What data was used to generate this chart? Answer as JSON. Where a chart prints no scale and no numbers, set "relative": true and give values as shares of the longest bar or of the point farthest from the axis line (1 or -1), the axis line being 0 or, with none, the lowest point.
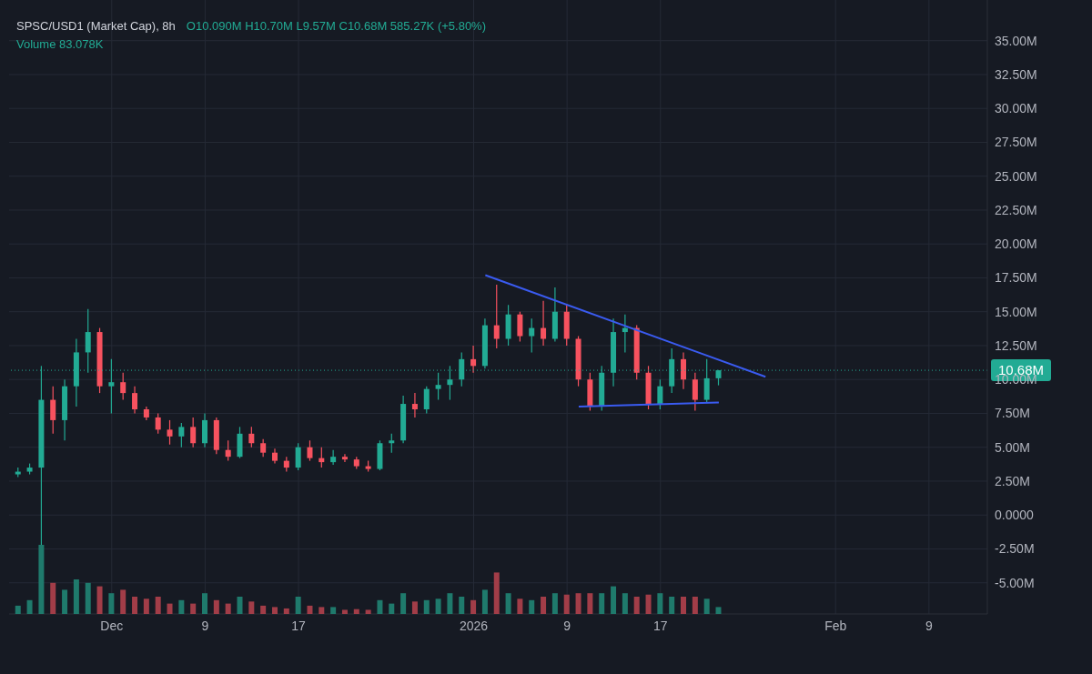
{
  "chart_data": [
    {
      "type": "candlestick",
      "title": "SPSC/USD1 (Market Cap), 8h",
      "annotations": [
        "O10.090M H10.70M L9.57M C10.68M 585.27K (+5.80%)",
        "Volume 83.078K"
      ],
      "x": [
        "2025-11-23",
        "2025-11-24",
        "2025-11-25",
        "2025-11-26",
        "2025-11-27",
        "2025-11-28",
        "2025-11-29",
        "2025-11-30",
        "2025-12-01",
        "2025-12-02",
        "2025-12-03",
        "2025-12-04",
        "2025-12-05",
        "2025-12-06",
        "2025-12-07",
        "2025-12-08",
        "2025-12-09",
        "2025-12-10",
        "2025-12-11",
        "2025-12-12",
        "2025-12-13",
        "2025-12-14",
        "2025-12-15",
        "2025-12-16",
        "2025-12-17",
        "2025-12-18",
        "2025-12-19",
        "2025-12-20",
        "2025-12-21",
        "2025-12-22",
        "2025-12-23",
        "2025-12-24",
        "2025-12-25",
        "2025-12-26",
        "2025-12-27",
        "2025-12-28",
        "2025-12-29",
        "2025-12-30",
        "2025-12-31",
        "2026-01-01",
        "2026-01-02",
        "2026-01-03",
        "2026-01-04",
        "2026-01-05",
        "2026-01-06",
        "2026-01-07",
        "2026-01-08",
        "2026-01-09",
        "2026-01-10",
        "2026-01-11",
        "2026-01-12",
        "2026-01-13",
        "2026-01-14",
        "2026-01-15",
        "2026-01-16",
        "2026-01-17",
        "2026-01-18",
        "2026-01-19",
        "2026-01-20",
        "2026-01-21",
        "2026-01-22"
      ],
      "ohlc": [
        [
          3.0,
          3.5,
          2.8,
          3.2
        ],
        [
          3.2,
          3.8,
          3.0,
          3.5
        ],
        [
          3.5,
          11.0,
          -2.5,
          8.5
        ],
        [
          8.5,
          9.5,
          6.0,
          7.0
        ],
        [
          7.0,
          10.0,
          5.5,
          9.5
        ],
        [
          9.5,
          13.0,
          8.0,
          12.0
        ],
        [
          12.0,
          15.2,
          10.5,
          13.5
        ],
        [
          13.5,
          13.8,
          9.0,
          9.5
        ],
        [
          9.5,
          11.5,
          7.5,
          9.8
        ],
        [
          9.8,
          10.5,
          8.5,
          9.0
        ],
        [
          9.0,
          9.5,
          7.5,
          7.8
        ],
        [
          7.8,
          8.0,
          7.0,
          7.2
        ],
        [
          7.2,
          7.5,
          6.0,
          6.3
        ],
        [
          6.3,
          7.0,
          5.2,
          5.8
        ],
        [
          5.8,
          6.8,
          5.0,
          6.5
        ],
        [
          6.5,
          7.2,
          5.0,
          5.3
        ],
        [
          5.3,
          7.5,
          5.0,
          7.0
        ],
        [
          7.0,
          7.2,
          4.5,
          4.8
        ],
        [
          4.8,
          5.5,
          4.0,
          4.3
        ],
        [
          4.3,
          6.5,
          4.2,
          6.0
        ],
        [
          6.0,
          6.5,
          5.0,
          5.3
        ],
        [
          5.3,
          5.6,
          4.3,
          4.6
        ],
        [
          4.6,
          4.9,
          3.8,
          4.0
        ],
        [
          4.0,
          4.3,
          3.2,
          3.5
        ],
        [
          3.5,
          5.3,
          3.3,
          5.0
        ],
        [
          5.0,
          5.5,
          4.0,
          4.2
        ],
        [
          4.2,
          5.0,
          3.5,
          3.9
        ],
        [
          3.9,
          4.8,
          3.7,
          4.3
        ],
        [
          4.3,
          4.5,
          3.9,
          4.1
        ],
        [
          4.1,
          4.3,
          3.4,
          3.6
        ],
        [
          3.6,
          4.0,
          3.2,
          3.4
        ],
        [
          3.4,
          5.5,
          3.3,
          5.3
        ],
        [
          5.3,
          6.0,
          4.6,
          5.5
        ],
        [
          5.5,
          8.8,
          5.3,
          8.2
        ],
        [
          8.2,
          9.0,
          7.2,
          7.8
        ],
        [
          7.8,
          9.5,
          7.5,
          9.3
        ],
        [
          9.3,
          10.5,
          8.5,
          9.6
        ],
        [
          9.6,
          11.0,
          8.5,
          10.0
        ],
        [
          10.0,
          12.0,
          9.5,
          11.5
        ],
        [
          11.5,
          12.5,
          10.5,
          11.0
        ],
        [
          11.0,
          14.5,
          10.8,
          14.0
        ],
        [
          14.0,
          17.0,
          12.3,
          13.0
        ],
        [
          13.0,
          15.5,
          12.5,
          14.8
        ],
        [
          14.8,
          15.0,
          12.8,
          13.2
        ],
        [
          13.2,
          14.5,
          12.0,
          13.8
        ],
        [
          13.8,
          15.8,
          12.5,
          13.0
        ],
        [
          13.0,
          16.8,
          12.8,
          15.0
        ],
        [
          15.0,
          15.5,
          12.5,
          13.0
        ],
        [
          13.0,
          13.2,
          9.5,
          10.0
        ],
        [
          10.0,
          10.5,
          7.7,
          8.0
        ],
        [
          8.0,
          11.0,
          7.7,
          10.5
        ],
        [
          10.5,
          14.5,
          9.5,
          13.5
        ],
        [
          13.5,
          14.8,
          12.0,
          13.8
        ],
        [
          13.8,
          14.0,
          10.0,
          10.5
        ],
        [
          10.5,
          11.0,
          7.8,
          8.2
        ],
        [
          8.2,
          10.0,
          7.8,
          9.5
        ],
        [
          9.5,
          12.3,
          9.0,
          11.5
        ],
        [
          11.5,
          12.0,
          9.3,
          10.0
        ],
        [
          10.0,
          10.5,
          7.7,
          8.5
        ],
        [
          8.5,
          11.5,
          8.3,
          10.09
        ],
        [
          10.09,
          10.7,
          9.57,
          10.68
        ]
      ],
      "colors": [
        "#22ab94",
        "#22ab94",
        "#22ab94",
        "#f7525f",
        "#22ab94",
        "#22ab94",
        "#22ab94",
        "#f7525f",
        "#22ab94",
        "#f7525f",
        "#f7525f",
        "#f7525f",
        "#f7525f",
        "#f7525f",
        "#22ab94",
        "#f7525f",
        "#22ab94",
        "#f7525f",
        "#f7525f",
        "#22ab94",
        "#f7525f",
        "#f7525f",
        "#f7525f",
        "#f7525f",
        "#22ab94",
        "#f7525f",
        "#f7525f",
        "#22ab94",
        "#f7525f",
        "#f7525f",
        "#f7525f",
        "#22ab94",
        "#22ab94",
        "#22ab94",
        "#f7525f",
        "#22ab94",
        "#22ab94",
        "#22ab94",
        "#22ab94",
        "#f7525f",
        "#22ab94",
        "#f7525f",
        "#22ab94",
        "#f7525f",
        "#22ab94",
        "#f7525f",
        "#22ab94",
        "#f7525f",
        "#f7525f",
        "#f7525f",
        "#22ab94",
        "#22ab94",
        "#22ab94",
        "#f7525f",
        "#f7525f",
        "#22ab94",
        "#22ab94",
        "#f7525f",
        "#f7525f",
        "#22ab94",
        "#22ab94"
      ],
      "series": [
        {
          "type": "line",
          "color": "#3a5bf0",
          "x": [
            "2026-01-02",
            "2026-01-26"
          ],
          "values": [
            17.7,
            10.2
          ]
        },
        {
          "type": "line",
          "color": "#3a5bf0",
          "x": [
            "2026-01-10",
            "2026-01-22"
          ],
          "values": [
            8.0,
            8.3
          ]
        }
      ],
      "xlim": [
        "2025-11-22T05:00",
        "2026-02-14"
      ],
      "xticks": [
        {
          "value": "2025-12-01",
          "label": "Dec"
        },
        {
          "value": "2025-12-09",
          "label": "9"
        },
        {
          "value": "2025-12-17",
          "label": "17"
        },
        {
          "value": "2026-01-01",
          "label": "2026"
        },
        {
          "value": "2026-01-09",
          "label": "9"
        },
        {
          "value": "2026-01-17",
          "label": "17"
        },
        {
          "value": "2026-02-01",
          "label": "Feb"
        },
        {
          "value": "2026-02-09",
          "label": "9"
        }
      ],
      "ylim": [
        -7.3,
        38
      ],
      "yticks": [
        {
          "value": -5,
          "label": "-5.00M"
        },
        {
          "value": -2.5,
          "label": "-2.50M"
        },
        {
          "value": 0,
          "label": "0.0000"
        },
        {
          "value": 2.5,
          "label": "2.50M"
        },
        {
          "value": 5,
          "label": "5.00M"
        },
        {
          "value": 7.5,
          "label": "7.50M"
        },
        {
          "value": 10,
          "label": "10.00M"
        },
        {
          "value": 12.5,
          "label": "12.50M"
        },
        {
          "value": 15,
          "label": "15.00M"
        },
        {
          "value": 17.5,
          "label": "17.50M"
        },
        {
          "value": 20,
          "label": "20.00M"
        },
        {
          "value": 22.5,
          "label": "22.50M"
        },
        {
          "value": 25,
          "label": "25.00M"
        },
        {
          "value": 27.5,
          "label": "27.50M"
        },
        {
          "value": 30,
          "label": "30.00M"
        },
        {
          "value": 32.5,
          "label": "32.50M"
        },
        {
          "value": 35,
          "label": "35.00M"
        }
      ],
      "ref_lines": [
        {
          "axis": "y",
          "value": 10.68,
          "label": "10.68M",
          "color": "#22ab94",
          "line_style": "dotted"
        }
      ],
      "grid": true
    },
    {
      "type": "bar",
      "relative": true,
      "tick_labels": false,
      "xlim": [
        "2025-11-22T05:00",
        "2026-02-14"
      ],
      "x": [
        "2025-11-23",
        "2025-11-24",
        "2025-11-25",
        "2025-11-26",
        "2025-11-27",
        "2025-11-28",
        "2025-11-29",
        "2025-11-30",
        "2025-12-01",
        "2025-12-02",
        "2025-12-03",
        "2025-12-04",
        "2025-12-05",
        "2025-12-06",
        "2025-12-07",
        "2025-12-08",
        "2025-12-09",
        "2025-12-10",
        "2025-12-11",
        "2025-12-12",
        "2025-12-13",
        "2025-12-14",
        "2025-12-15",
        "2025-12-16",
        "2025-12-17",
        "2025-12-18",
        "2025-12-19",
        "2025-12-20",
        "2025-12-21",
        "2025-12-22",
        "2025-12-23",
        "2025-12-24",
        "2025-12-25",
        "2025-12-26",
        "2025-12-27",
        "2025-12-28",
        "2025-12-29",
        "2025-12-30",
        "2025-12-31",
        "2026-01-01",
        "2026-01-02",
        "2026-01-03",
        "2026-01-04",
        "2026-01-05",
        "2026-01-06",
        "2026-01-07",
        "2026-01-08",
        "2026-01-09",
        "2026-01-10",
        "2026-01-11",
        "2026-01-12",
        "2026-01-13",
        "2026-01-14",
        "2026-01-15",
        "2026-01-16",
        "2026-01-17",
        "2026-01-18",
        "2026-01-19",
        "2026-01-20",
        "2026-01-21",
        "2026-01-22"
      ],
      "colors": [
        "#1f7a6c",
        "#1f7a6c",
        "#1f7a6c",
        "#a23d48",
        "#1f7a6c",
        "#1f7a6c",
        "#1f7a6c",
        "#a23d48",
        "#1f7a6c",
        "#a23d48",
        "#a23d48",
        "#a23d48",
        "#a23d48",
        "#a23d48",
        "#1f7a6c",
        "#a23d48",
        "#1f7a6c",
        "#a23d48",
        "#a23d48",
        "#1f7a6c",
        "#a23d48",
        "#a23d48",
        "#a23d48",
        "#a23d48",
        "#1f7a6c",
        "#a23d48",
        "#a23d48",
        "#1f7a6c",
        "#a23d48",
        "#a23d48",
        "#a23d48",
        "#1f7a6c",
        "#1f7a6c",
        "#1f7a6c",
        "#a23d48",
        "#1f7a6c",
        "#1f7a6c",
        "#1f7a6c",
        "#1f7a6c",
        "#a23d48",
        "#1f7a6c",
        "#a23d48",
        "#1f7a6c",
        "#a23d48",
        "#1f7a6c",
        "#a23d48",
        "#1f7a6c",
        "#a23d48",
        "#a23d48",
        "#a23d48",
        "#1f7a6c",
        "#1f7a6c",
        "#1f7a6c",
        "#a23d48",
        "#a23d48",
        "#1f7a6c",
        "#1f7a6c",
        "#a23d48",
        "#a23d48",
        "#1f7a6c",
        "#1f7a6c"
      ],
      "values": [
        0.12,
        0.2,
        1,
        0.45,
        0.35,
        0.5,
        0.45,
        0.4,
        0.3,
        0.35,
        0.25,
        0.22,
        0.25,
        0.15,
        0.2,
        0.15,
        0.3,
        0.2,
        0.15,
        0.25,
        0.18,
        0.12,
        0.1,
        0.08,
        0.25,
        0.12,
        0.1,
        0.1,
        0.06,
        0.07,
        0.06,
        0.2,
        0.15,
        0.3,
        0.18,
        0.2,
        0.22,
        0.3,
        0.25,
        0.2,
        0.35,
        0.6,
        0.3,
        0.22,
        0.2,
        0.25,
        0.3,
        0.28,
        0.3,
        0.3,
        0.3,
        0.4,
        0.3,
        0.25,
        0.28,
        0.3,
        0.25,
        0.25,
        0.25,
        0.22,
        0.1
      ]
    }
  ]
}
